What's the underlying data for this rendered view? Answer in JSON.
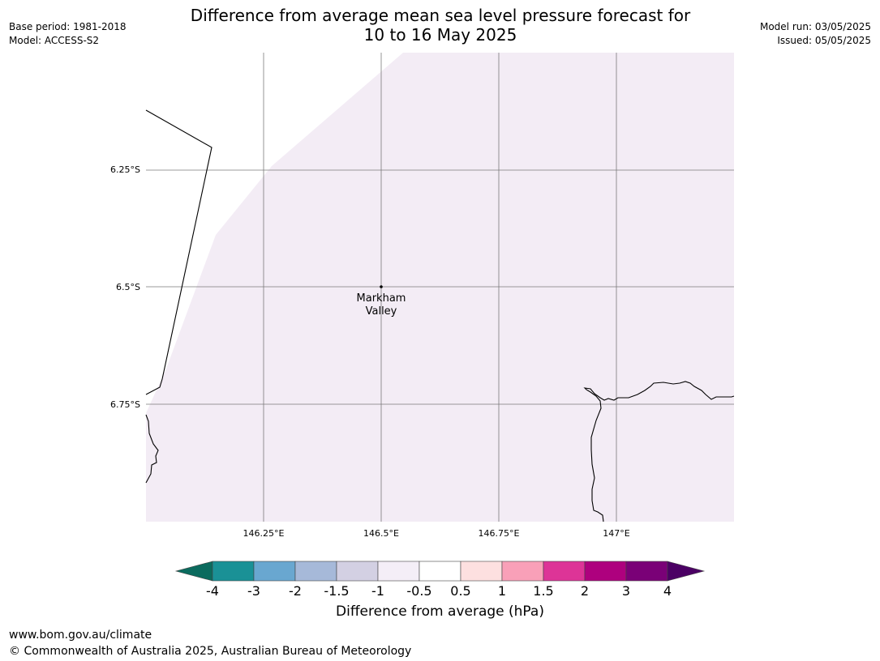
{
  "header": {
    "title_line1": "Difference from average mean sea level pressure forecast for",
    "title_line2": "10 to 16 May 2025",
    "base_period": "Base period: 1981-2018",
    "model": "Model: ACCESS-S2",
    "model_run": "Model run: 03/05/2025",
    "issued": "Issued: 05/05/2025"
  },
  "map": {
    "lat_ticks": [
      "6.25°S",
      "6.5°S",
      "6.75°S"
    ],
    "lon_ticks": [
      "146.25°E",
      "146.5°E",
      "146.75°E",
      "147°E"
    ],
    "place_label_line1": "Markham",
    "place_label_line2": "Valley",
    "field_color": "#f3ecf5",
    "gridline_color": "#7a7a7a",
    "coastline_color": "#000000"
  },
  "colorbar": {
    "label": "Difference from average (hPa)",
    "ticks": [
      "-4",
      "-3",
      "-2",
      "-1.5",
      "-1",
      "-0.5",
      "0.5",
      "1",
      "1.5",
      "2",
      "3",
      "4"
    ],
    "colors": [
      "#0b6b5e",
      "#1a9196",
      "#69a7d0",
      "#a6b9d9",
      "#d3d0e3",
      "#f4eef7",
      "#ffffff",
      "#fde0e0",
      "#f9a0b8",
      "#dd3497",
      "#ae017e",
      "#7a0177",
      "#4b0064"
    ]
  },
  "footer": {
    "website": "www.bom.gov.au/climate",
    "copyright": "© Commonwealth of Australia 2025, Australian Bureau of Meteorology"
  }
}
